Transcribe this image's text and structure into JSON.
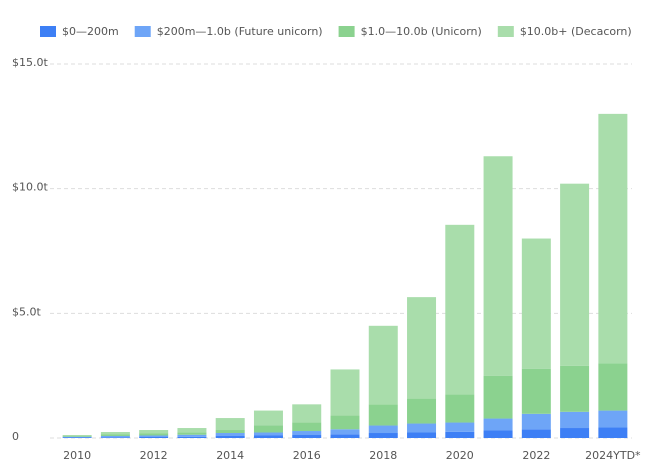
{
  "chart_data": {
    "type": "stacked-bar",
    "categories": [
      "2010",
      null,
      "2012",
      null,
      "2014",
      null,
      "2016",
      null,
      "2018",
      null,
      "2020",
      null,
      "2022",
      null,
      "2024YTD*"
    ],
    "series": [
      {
        "name": "$0—200m",
        "color": "#3d7ff5",
        "values": [
          0.02,
          0.03,
          0.04,
          0.05,
          0.08,
          0.1,
          0.12,
          0.15,
          0.2,
          0.22,
          0.25,
          0.3,
          0.35,
          0.4,
          0.42
        ]
      },
      {
        "name": "$200m—1.0b (Future unicorn)",
        "color": "#6ea5f7",
        "values": [
          0.03,
          0.05,
          0.06,
          0.08,
          0.12,
          0.12,
          0.16,
          0.2,
          0.3,
          0.36,
          0.37,
          0.48,
          0.62,
          0.65,
          0.68
        ]
      },
      {
        "name": "$1.0—10.0b (Unicorn)",
        "color": "#8bd28f",
        "values": [
          0.03,
          0.06,
          0.08,
          0.1,
          0.12,
          0.28,
          0.35,
          0.55,
          0.85,
          1.0,
          1.13,
          1.72,
          1.81,
          1.85,
          1.9
        ]
      },
      {
        "name": "$10.0b+ (Decacorn)",
        "color": "#a9ddab",
        "values": [
          0.04,
          0.1,
          0.14,
          0.17,
          0.48,
          0.6,
          0.72,
          1.85,
          3.15,
          4.07,
          6.8,
          8.8,
          5.22,
          7.3,
          10.0
        ]
      }
    ],
    "ylim": [
      0,
      15
    ],
    "yticks": [
      0,
      {
        "value": 5,
        "label": "$5.0t"
      },
      {
        "value": 10,
        "label": "$10.0t"
      },
      {
        "value": 15,
        "label": "$15.0t"
      }
    ],
    "grid": true
  }
}
